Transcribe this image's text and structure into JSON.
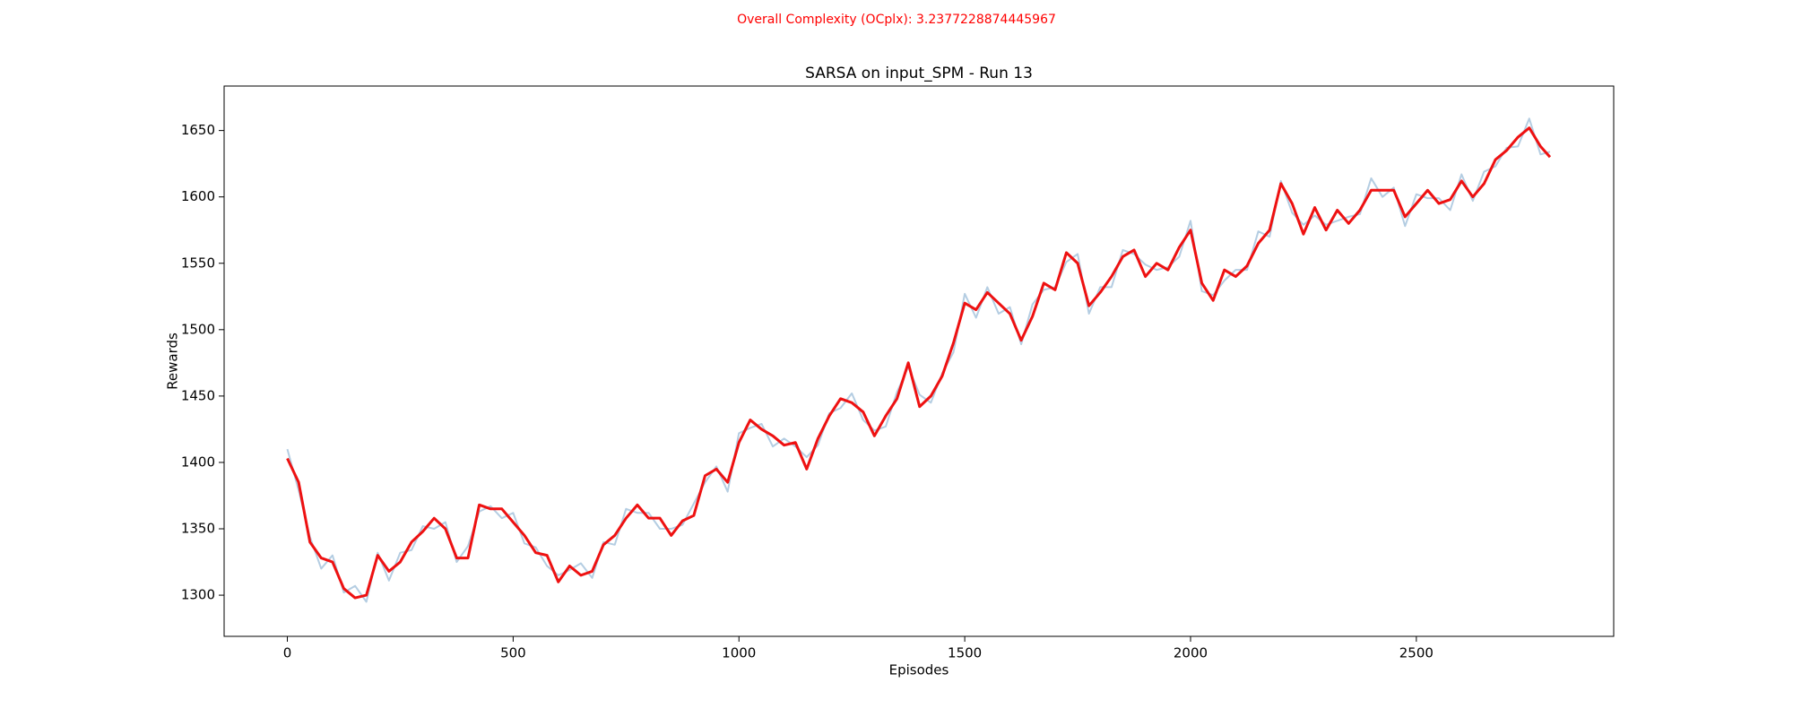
{
  "chart_data": {
    "type": "line",
    "subtitle": "Overall Complexity (OCplx): 3.2377228874445967",
    "title": "SARSA on input_SPM - Run 13",
    "xlabel": "Episodes",
    "ylabel": "Rewards",
    "x": [
      0,
      25,
      50,
      75,
      100,
      125,
      150,
      175,
      200,
      225,
      250,
      275,
      300,
      325,
      350,
      375,
      400,
      425,
      450,
      475,
      500,
      525,
      550,
      575,
      600,
      625,
      650,
      675,
      700,
      725,
      750,
      775,
      800,
      825,
      850,
      875,
      900,
      925,
      950,
      975,
      1000,
      1025,
      1050,
      1075,
      1100,
      1125,
      1150,
      1175,
      1200,
      1225,
      1250,
      1275,
      1300,
      1325,
      1350,
      1375,
      1400,
      1425,
      1450,
      1475,
      1500,
      1525,
      1550,
      1575,
      1600,
      1625,
      1650,
      1675,
      1700,
      1725,
      1750,
      1775,
      1800,
      1825,
      1850,
      1875,
      1900,
      1925,
      1950,
      1975,
      2000,
      2025,
      2050,
      2075,
      2100,
      2125,
      2150,
      2175,
      2200,
      2225,
      2250,
      2275,
      2300,
      2325,
      2350,
      2375,
      2400,
      2425,
      2450,
      2475,
      2500,
      2525,
      2550,
      2575,
      2600,
      2625,
      2650,
      2675,
      2700,
      2725,
      2750,
      2775,
      2796
    ],
    "series": [
      {
        "color": "#b4cde2",
        "width": 2,
        "values": [
          1410,
          1379,
          1344,
          1320,
          1330,
          1302,
          1307,
          1295,
          1332,
          1311,
          1332,
          1334,
          1352,
          1350,
          1355,
          1325,
          1337,
          1363,
          1367,
          1358,
          1362,
          1339,
          1336,
          1322,
          1315,
          1319,
          1324,
          1313,
          1340,
          1338,
          1365,
          1362,
          1362,
          1350,
          1350,
          1353,
          1369,
          1385,
          1397,
          1378,
          1422,
          1426,
          1429,
          1412,
          1418,
          1412,
          1404,
          1413,
          1437,
          1441,
          1452,
          1432,
          1424,
          1427,
          1453,
          1472,
          1451,
          1445,
          1467,
          1483,
          1527,
          1509,
          1532,
          1512,
          1517,
          1489,
          1519,
          1530,
          1532,
          1551,
          1557,
          1512,
          1532,
          1532,
          1560,
          1557,
          1549,
          1545,
          1547,
          1555,
          1582,
          1529,
          1526,
          1537,
          1545,
          1545,
          1574,
          1570,
          1612,
          1588,
          1579,
          1586,
          1579,
          1582,
          1585,
          1587,
          1614,
          1600,
          1607,
          1578,
          1602,
          1599,
          1599,
          1590,
          1617,
          1597,
          1619,
          1623,
          1637,
          1638,
          1659,
          1632,
          1634
        ]
      },
      {
        "color": "#ee1111",
        "width": 3,
        "values": [
          1403,
          1385,
          1340,
          1328,
          1325,
          1305,
          1298,
          1300,
          1330,
          1318,
          1325,
          1340,
          1348,
          1358,
          1350,
          1328,
          1328,
          1368,
          1365,
          1365,
          1355,
          1345,
          1332,
          1330,
          1310,
          1322,
          1315,
          1318,
          1338,
          1345,
          1358,
          1368,
          1358,
          1358,
          1345,
          1356,
          1360,
          1390,
          1395,
          1385,
          1415,
          1432,
          1425,
          1420,
          1413,
          1415,
          1395,
          1418,
          1435,
          1448,
          1445,
          1438,
          1420,
          1435,
          1448,
          1475,
          1442,
          1450,
          1465,
          1490,
          1520,
          1515,
          1528,
          1520,
          1512,
          1492,
          1510,
          1535,
          1530,
          1558,
          1550,
          1518,
          1528,
          1540,
          1555,
          1560,
          1540,
          1550,
          1545,
          1562,
          1575,
          1535,
          1522,
          1545,
          1540,
          1548,
          1565,
          1575,
          1610,
          1595,
          1572,
          1592,
          1575,
          1590,
          1580,
          1590,
          1605,
          1605,
          1605,
          1585,
          1595,
          1605,
          1595,
          1598,
          1612,
          1600,
          1610,
          1628,
          1635,
          1645,
          1652,
          1638,
          1630
        ]
      }
    ],
    "xlim": [
      -140,
      2937
    ],
    "xticks": [
      0,
      500,
      1000,
      1500,
      2000,
      2500
    ],
    "ylim": [
      1269,
      1683.5
    ],
    "yticks": [
      1300,
      1350,
      1400,
      1450,
      1500,
      1550,
      1600,
      1650
    ]
  }
}
